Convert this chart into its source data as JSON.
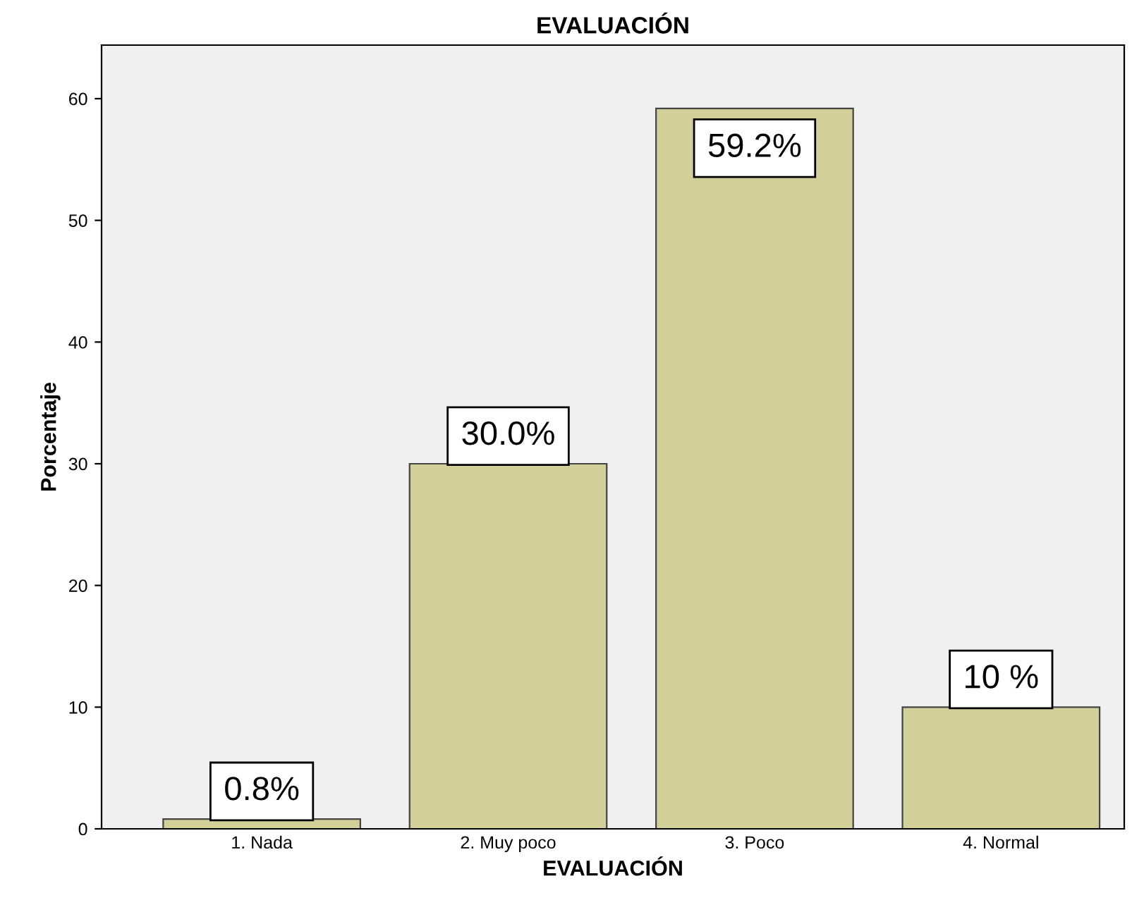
{
  "chart_data": {
    "type": "bar",
    "title": "EVALUACIÓN",
    "xlabel": "EVALUACIÓN",
    "ylabel": "Porcentaje",
    "categories": [
      "1. Nada",
      "2. Muy poco",
      "3. Poco",
      "4. Normal"
    ],
    "values": [
      0.8,
      30.0,
      59.2,
      10
    ],
    "value_labels": [
      "0.8%",
      "30.0%",
      "59.2%",
      "10 %"
    ],
    "color": "#d3cf99",
    "ylim": [
      0,
      64.4
    ],
    "yticks": [
      0,
      10,
      20,
      30,
      40,
      50,
      60
    ],
    "grid": false,
    "legend": false
  }
}
